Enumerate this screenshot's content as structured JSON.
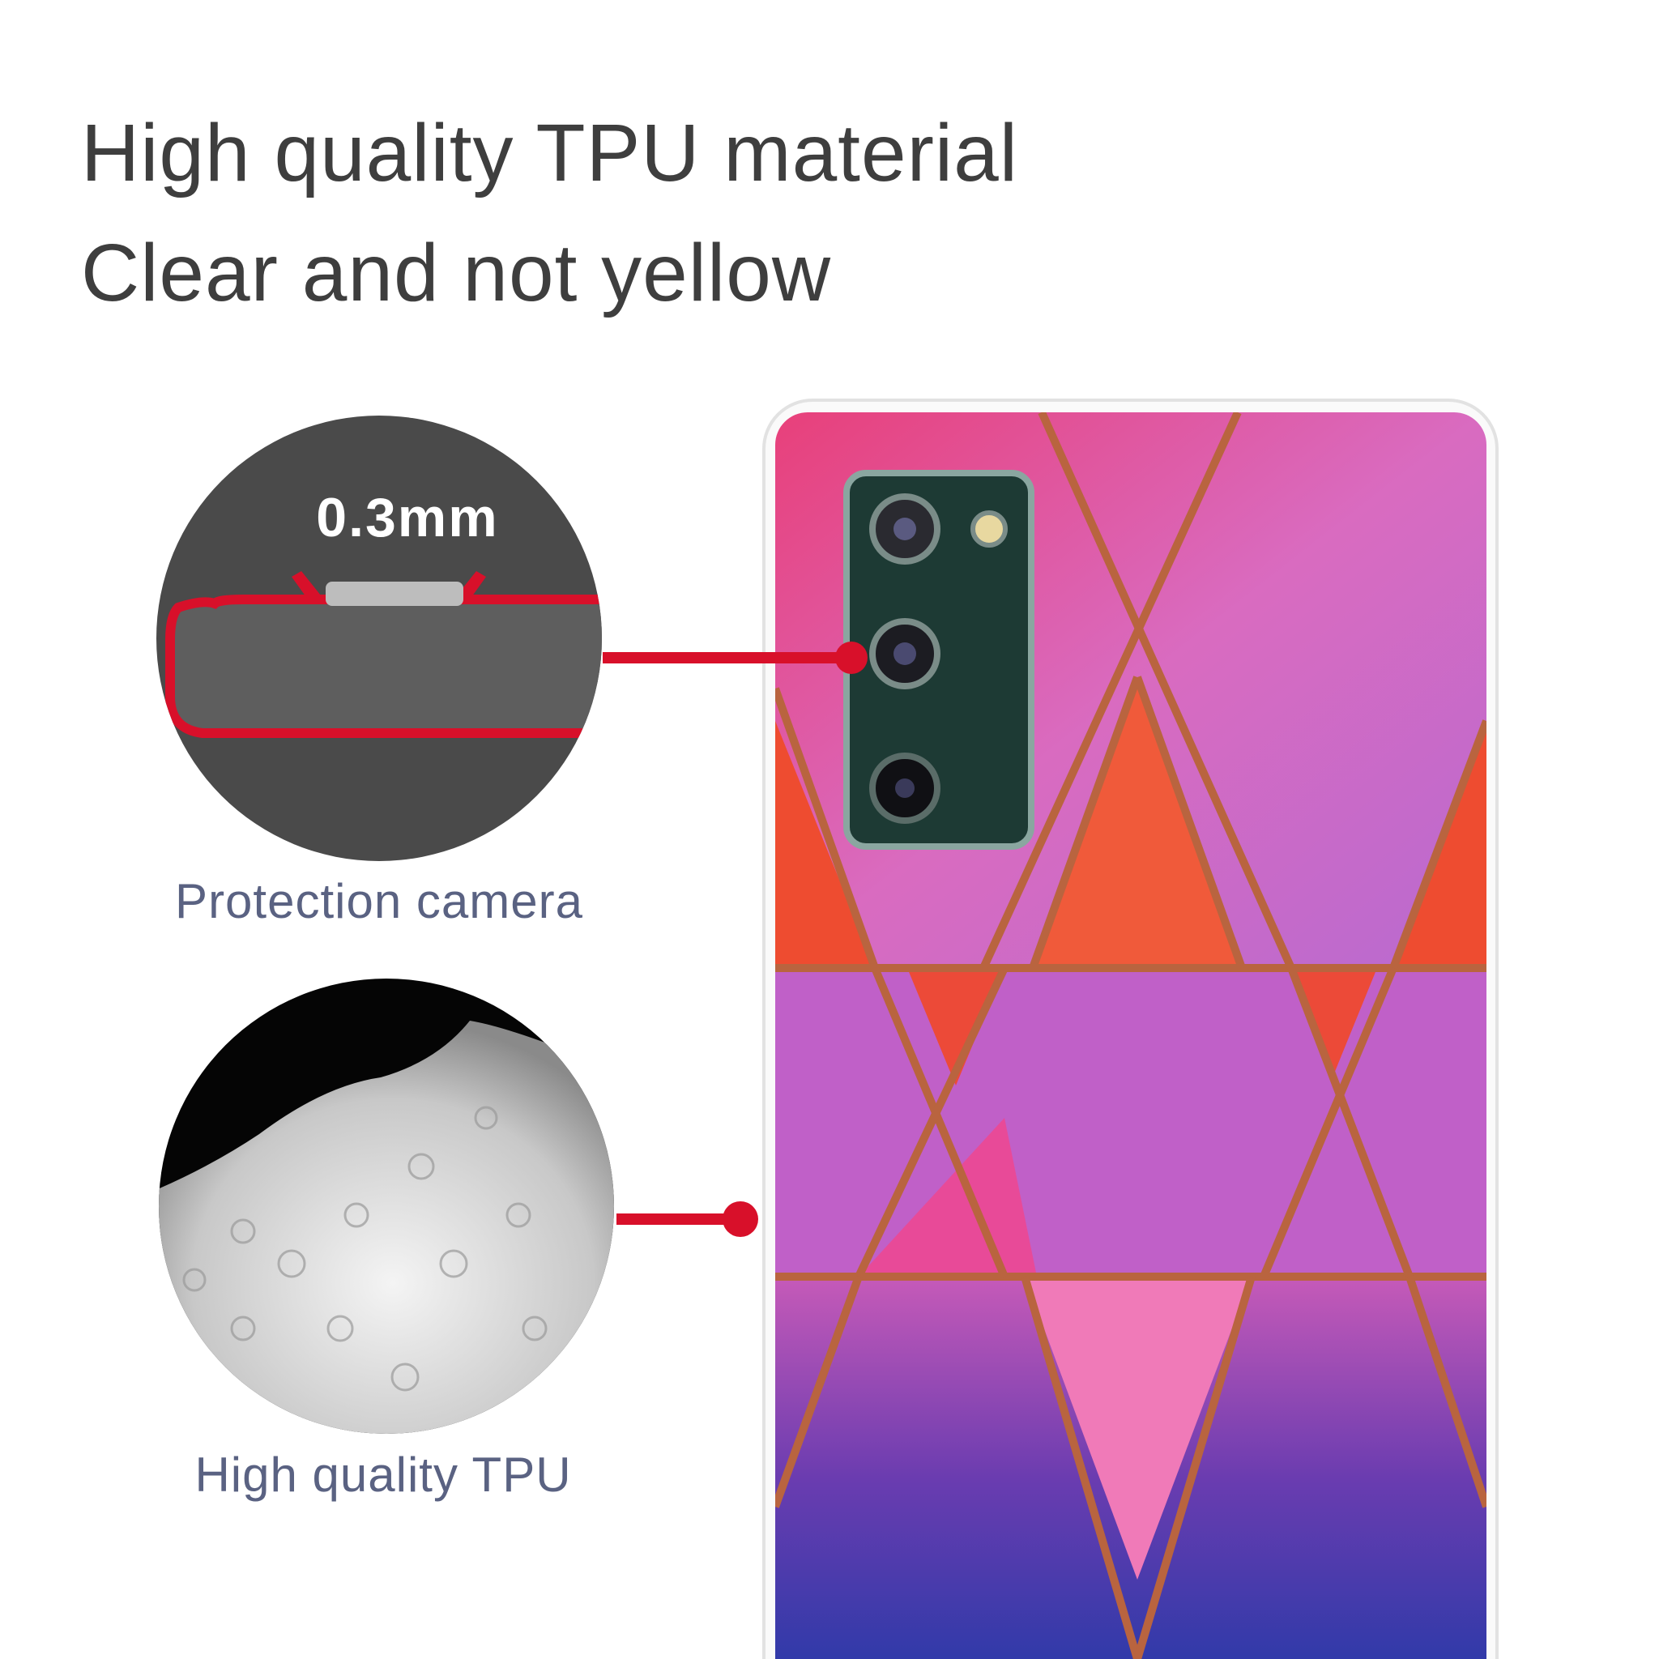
{
  "headline": {
    "line1": "High quality TPU material",
    "line2": "Clear and not yellow"
  },
  "callouts": [
    {
      "label": "Protection camera",
      "inset_text": "0.3mm",
      "icon": "camera-edge-cross-section-icon"
    },
    {
      "label": "High quality TPU",
      "icon": "tpu-granules-icon"
    }
  ],
  "colors": {
    "accent_red": "#d8102a",
    "text_dark": "#3e3e3e",
    "caption": "#5a6282",
    "circle_dark": "#4a4a4a",
    "copper_lines": "#b9643f"
  }
}
